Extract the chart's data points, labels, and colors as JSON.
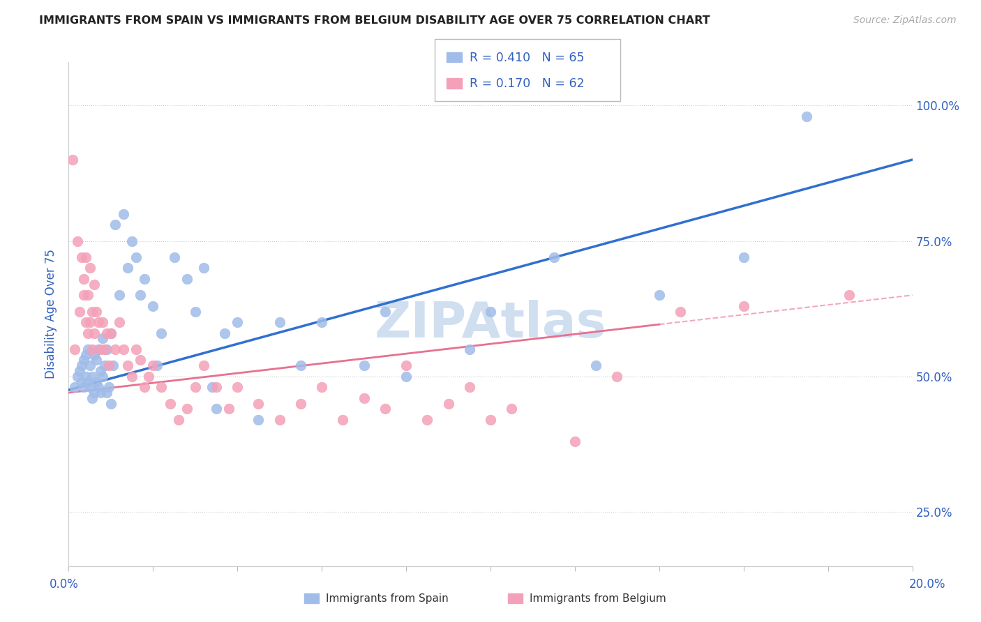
{
  "title": "IMMIGRANTS FROM SPAIN VS IMMIGRANTS FROM BELGIUM DISABILITY AGE OVER 75 CORRELATION CHART",
  "source": "Source: ZipAtlas.com",
  "ylabel": "Disability Age Over 75",
  "legend_label1": "Immigrants from Spain",
  "legend_label2": "Immigrants from Belgium",
  "R1": 0.41,
  "N1": 65,
  "R2": 0.17,
  "N2": 62,
  "xlim": [
    0.0,
    20.0
  ],
  "ylim": [
    15.0,
    108.0
  ],
  "yticks": [
    25.0,
    50.0,
    75.0,
    100.0
  ],
  "ytick_labels": [
    "25.0%",
    "50.0%",
    "75.0%",
    "100.0%"
  ],
  "color_spain": "#a0bce8",
  "color_belgium": "#f4a0b8",
  "color_blue_line": "#3070d0",
  "color_pink_line": "#e87090",
  "color_text_blue": "#3060c0",
  "color_title": "#333333",
  "color_source": "#999999",
  "watermark_color": "#d0dff0",
  "spain_x": [
    0.15,
    0.2,
    0.25,
    0.3,
    0.3,
    0.35,
    0.35,
    0.4,
    0.4,
    0.45,
    0.45,
    0.5,
    0.5,
    0.55,
    0.55,
    0.6,
    0.6,
    0.65,
    0.65,
    0.7,
    0.7,
    0.75,
    0.75,
    0.8,
    0.8,
    0.85,
    0.9,
    0.9,
    0.95,
    1.0,
    1.0,
    1.05,
    1.1,
    1.2,
    1.3,
    1.4,
    1.5,
    1.6,
    1.7,
    1.8,
    2.0,
    2.1,
    2.2,
    2.5,
    2.8,
    3.0,
    3.2,
    3.4,
    3.5,
    3.7,
    4.0,
    4.5,
    5.0,
    5.5,
    6.0,
    7.0,
    7.5,
    8.0,
    9.5,
    10.0,
    11.5,
    12.5,
    14.0,
    16.0,
    17.5
  ],
  "spain_y": [
    48.0,
    50.0,
    51.0,
    52.0,
    49.0,
    53.0,
    48.0,
    54.0,
    50.0,
    55.0,
    49.0,
    52.0,
    48.0,
    50.0,
    46.0,
    54.0,
    47.0,
    53.0,
    49.0,
    55.0,
    48.0,
    51.0,
    47.0,
    57.0,
    50.0,
    52.0,
    55.0,
    47.0,
    48.0,
    58.0,
    45.0,
    52.0,
    78.0,
    65.0,
    80.0,
    70.0,
    75.0,
    72.0,
    65.0,
    68.0,
    63.0,
    52.0,
    58.0,
    72.0,
    68.0,
    62.0,
    70.0,
    48.0,
    44.0,
    58.0,
    60.0,
    42.0,
    60.0,
    52.0,
    60.0,
    52.0,
    62.0,
    50.0,
    55.0,
    62.0,
    72.0,
    52.0,
    65.0,
    72.0,
    98.0
  ],
  "belgium_x": [
    0.1,
    0.15,
    0.2,
    0.25,
    0.3,
    0.35,
    0.35,
    0.4,
    0.4,
    0.45,
    0.45,
    0.5,
    0.5,
    0.55,
    0.55,
    0.6,
    0.6,
    0.65,
    0.7,
    0.75,
    0.8,
    0.85,
    0.9,
    0.95,
    1.0,
    1.1,
    1.2,
    1.3,
    1.4,
    1.5,
    1.6,
    1.7,
    1.8,
    1.9,
    2.0,
    2.2,
    2.4,
    2.6,
    2.8,
    3.0,
    3.2,
    3.5,
    3.8,
    4.0,
    4.5,
    5.0,
    5.5,
    6.0,
    6.5,
    7.0,
    7.5,
    8.0,
    8.5,
    9.0,
    9.5,
    10.0,
    10.5,
    12.0,
    13.0,
    14.5,
    16.0,
    18.5
  ],
  "belgium_y": [
    90.0,
    55.0,
    75.0,
    62.0,
    72.0,
    68.0,
    65.0,
    72.0,
    60.0,
    65.0,
    58.0,
    70.0,
    60.0,
    62.0,
    55.0,
    67.0,
    58.0,
    62.0,
    60.0,
    55.0,
    60.0,
    55.0,
    58.0,
    52.0,
    58.0,
    55.0,
    60.0,
    55.0,
    52.0,
    50.0,
    55.0,
    53.0,
    48.0,
    50.0,
    52.0,
    48.0,
    45.0,
    42.0,
    44.0,
    48.0,
    52.0,
    48.0,
    44.0,
    48.0,
    45.0,
    42.0,
    45.0,
    48.0,
    42.0,
    46.0,
    44.0,
    52.0,
    42.0,
    45.0,
    48.0,
    42.0,
    44.0,
    38.0,
    50.0,
    62.0,
    63.0,
    65.0
  ],
  "regression_spain": [
    47.5,
    90.0
  ],
  "regression_belgium_solid_end": 14.0,
  "regression_belgium": [
    47.0,
    65.0
  ]
}
